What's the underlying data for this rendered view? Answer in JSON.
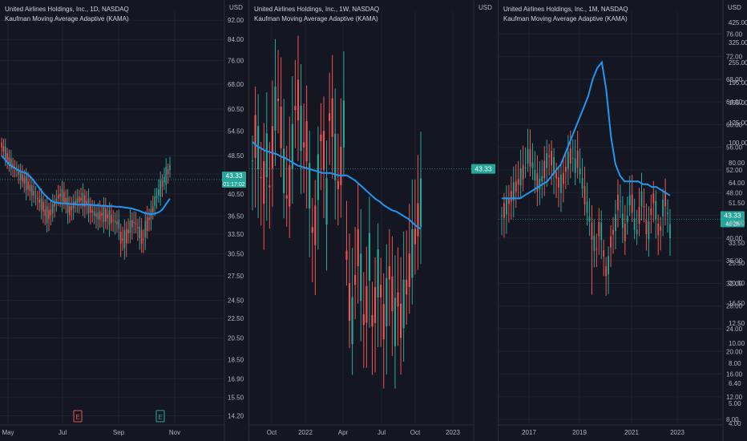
{
  "colors": {
    "bg": "#141722",
    "grid": "#1e2230",
    "up": "#26a69a",
    "down": "#ef5350",
    "kama": "#2196f3",
    "tag": "#26a69a"
  },
  "currency": "USD",
  "panes": [
    {
      "title": "United Airlines Holdings, Inc., 1D, NASDAQ",
      "indicator": "Kaufman Moving Average Adaptive (KAMA)",
      "price_tag": "43.33",
      "countdown": "01:17:02",
      "events": [
        "E",
        "E"
      ],
      "chart_data": {
        "type": "candlestick",
        "y_scale": "log",
        "ylim": [
          13.8,
          96
        ],
        "y_ticks": [
          "92.00",
          "84.00",
          "76.00",
          "68.00",
          "60.50",
          "54.50",
          "48.50",
          "44.50",
          "40.50",
          "36.50",
          "33.50",
          "30.50",
          "27.50",
          "24.50",
          "22.50",
          "20.50",
          "18.50",
          "16.90",
          "15.50",
          "14.20"
        ],
        "x_ticks": [
          "May",
          "Jul",
          "Sep",
          "Nov"
        ],
        "last_price": 43.33,
        "candles_approx": {
          "open": [
            51,
            50,
            49,
            47,
            45,
            44,
            45,
            44,
            45,
            43,
            42,
            41,
            40,
            39,
            38,
            37,
            38,
            39,
            38,
            37,
            39,
            38,
            37,
            38,
            39,
            38,
            38,
            37,
            38,
            38,
            37,
            37,
            38,
            38,
            37,
            37,
            36,
            35,
            34,
            33,
            33,
            34,
            35,
            36,
            38,
            40,
            42,
            44
          ],
          "close": [
            50,
            49,
            47,
            45,
            44,
            45,
            44,
            45,
            43,
            42,
            41,
            40,
            39,
            38,
            37,
            38,
            39,
            38,
            37,
            39,
            38,
            37,
            38,
            39,
            38,
            38,
            37,
            38,
            38,
            37,
            37,
            38,
            38,
            37,
            37,
            36,
            35,
            34,
            33,
            33,
            34,
            35,
            36,
            38,
            40,
            42,
            44,
            45
          ]
        },
        "kama": [
          48.5,
          47.5,
          46.5,
          46,
          45.5,
          45,
          44.8,
          44.3,
          43.5,
          42.5,
          41.5,
          40.5,
          39.8,
          39.2,
          38.9,
          38.8,
          38.7,
          38.7,
          38.6,
          38.6,
          38.5,
          38.5,
          38.5,
          38.5,
          38.4,
          38.4,
          38.3,
          38.3,
          38.2,
          38.2,
          38.1,
          38.1,
          38,
          37.9,
          37.8,
          37.6,
          37.4,
          37.1,
          36.9,
          36.8,
          36.9,
          37.1,
          37.6,
          38.6,
          39.6
        ]
      }
    },
    {
      "title": "United Airlines Holdings, Inc., 1W, NASDAQ",
      "indicator": "Kaufman Moving Average Adaptive (KAMA)",
      "price_tag": "43.33",
      "countdown": "",
      "chart_data": {
        "type": "candlestick",
        "y_scale": "linear",
        "ylim": [
          23,
          56
        ],
        "y_ticks": [],
        "x_ticks": [
          "Oct",
          "2022",
          "Apr",
          "Jul",
          "Oct",
          "2023"
        ],
        "last_price": 43.33,
        "kama": [
          45.5,
          45.2,
          45,
          44.8,
          44.7,
          44.6,
          44.5,
          44.3,
          44.2,
          44,
          43.8,
          43.6,
          43.5,
          43.4,
          43.3,
          43.2,
          43.1,
          43,
          43,
          43,
          42.9,
          42.8,
          42.8,
          42.8,
          42.6,
          42.4,
          42.1,
          41.8,
          41.5,
          41.2,
          40.9,
          40.7,
          40.4,
          40.2,
          40,
          39.9,
          39.7,
          39.5,
          39.3,
          39,
          38.7,
          38.5
        ]
      }
    },
    {
      "title": "United Airlines Holdings, Inc., 1M, NASDAQ",
      "indicator": "Kaufman Moving Average Adaptive (KAMA)",
      "price_tag": "43.33",
      "countdown": "4d 2h",
      "chart_data": {
        "type": "candlestick",
        "y_scale": "log",
        "ylim": [
          7.6,
          80
        ],
        "y_ticks": [
          "76.00",
          "72.00",
          "68.00",
          "64.00",
          "60.00",
          "56.00",
          "52.00",
          "48.00",
          "44.00",
          "40.00",
          "36.00",
          "32.00",
          "28.00",
          "24.00",
          "20.00",
          "16.00",
          "12.00",
          "8.00"
        ],
        "x_ticks": [
          "2017",
          "2019",
          "2021",
          "2023"
        ],
        "last_price": 43.33,
        "kama": [
          47,
          47,
          47,
          47,
          47,
          47.5,
          48,
          48.5,
          49,
          49.5,
          50,
          51,
          52,
          53,
          55,
          57,
          59,
          61,
          63,
          65,
          68,
          70,
          71,
          66,
          58,
          53,
          51,
          50,
          50,
          50,
          50,
          49.5,
          49.5,
          49,
          49,
          48.5,
          48,
          47.5
        ]
      }
    }
  ],
  "pane3_right_axis": {
    "ticks": [
      "425.00",
      "325.00",
      "255.00",
      "195.00",
      "155.00",
      "125.00",
      "100.00",
      "80.00",
      "64.00",
      "51.50",
      "40.00",
      "33.50",
      "25.50",
      "20.50",
      "16.50",
      "12.50",
      "10.00",
      "8.00",
      "6.40",
      "5.00",
      "4.00"
    ]
  },
  "pane1_header_axis_label": "USD",
  "pane2_header_axis_label": "USD",
  "pane3_header_axis_label": "USD"
}
